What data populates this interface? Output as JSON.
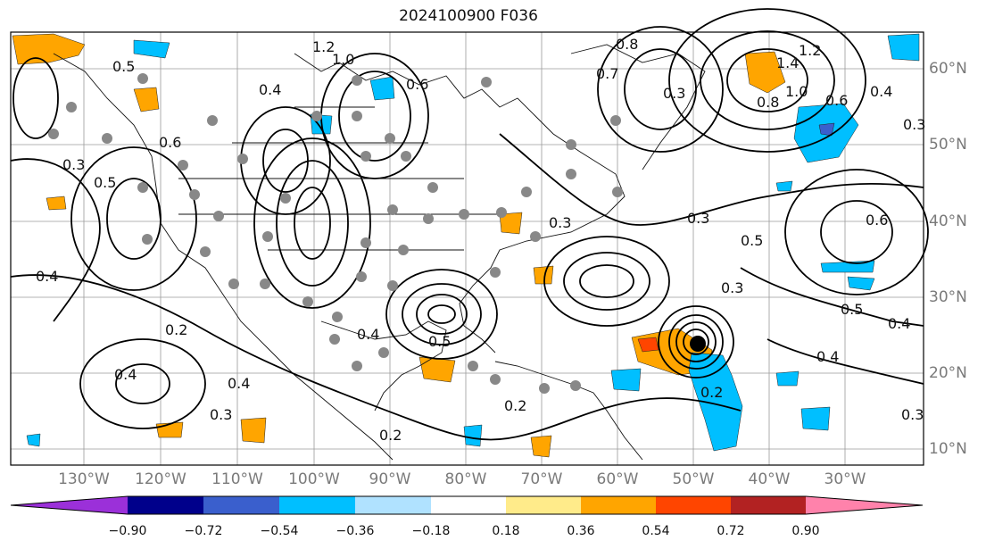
{
  "title": "2024100900 F036",
  "lon_labels": [
    "130°W",
    "120°W",
    "110°W",
    "100°W",
    "90°W",
    "80°W",
    "70°W",
    "60°W",
    "50°W",
    "40°W",
    "30°W"
  ],
  "lat_labels": [
    "60°N",
    "50°N",
    "40°N",
    "30°N",
    "20°N",
    "10°N"
  ],
  "colorbar": {
    "ticks": [
      "−0.90",
      "−0.72",
      "−0.54",
      "−0.36",
      "−0.18",
      "0.18",
      "0.36",
      "0.54",
      "0.72",
      "0.90"
    ],
    "colors": [
      "#9b30d9",
      "#00008b",
      "#3a5fcd",
      "#00bfff",
      "#b0e2ff",
      "#ffffff",
      "#ffeb8a",
      "#ffa500",
      "#ff4500",
      "#b22222",
      "#ff82ab"
    ]
  },
  "contour_labels": [
    "1.2",
    "1.0",
    "0.5",
    "0.4",
    "0.6",
    "0.8",
    "0.3",
    "0.7",
    "1.4",
    "1.2",
    "1.0",
    "0.8",
    "0.6",
    "0.4",
    "0.3",
    "0.5",
    "0.6",
    "0.3",
    "0.5",
    "0.4",
    "0.2",
    "0.3",
    "0.4",
    "0.4",
    "0.3",
    "0.2",
    "0.2",
    "0.4",
    "0.5",
    "0.3",
    "0.5",
    "0.4",
    "0.4",
    "0.3",
    "0.6",
    "0.2",
    "0.3"
  ]
}
